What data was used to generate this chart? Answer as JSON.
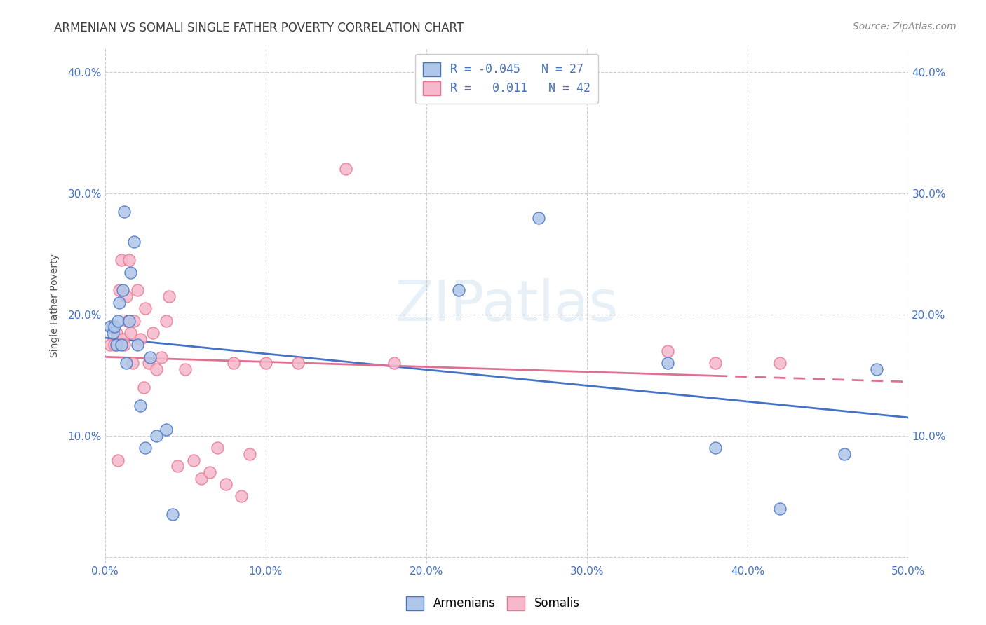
{
  "title": "ARMENIAN VS SOMALI SINGLE FATHER POVERTY CORRELATION CHART",
  "source": "Source: ZipAtlas.com",
  "ylabel": "Single Father Poverty",
  "xlim": [
    0.0,
    0.5
  ],
  "ylim": [
    -0.005,
    0.42
  ],
  "x_ticks": [
    0.0,
    0.1,
    0.2,
    0.3,
    0.4,
    0.5
  ],
  "x_tick_labels": [
    "0.0%",
    "10.0%",
    "20.0%",
    "30.0%",
    "40.0%",
    "50.0%"
  ],
  "y_ticks": [
    0.0,
    0.1,
    0.2,
    0.3,
    0.4
  ],
  "y_tick_labels": [
    "",
    "10.0%",
    "20.0%",
    "30.0%",
    "40.0%"
  ],
  "armenian_color": "#aec6e8",
  "somali_color": "#f5b8cc",
  "armenian_edge_color": "#4472c4",
  "somali_edge_color": "#e8758a",
  "armenian_line_color": "#4472c4",
  "somali_line_color": "#e07090",
  "background_color": "#ffffff",
  "grid_color": "#c8c8c8",
  "title_color": "#404040",
  "axis_tick_color": "#4472c4",
  "watermark_text": "ZIPatlas",
  "legend_r1": "R = -0.045",
  "legend_n1": "N = 27",
  "legend_r2": "R =   0.011",
  "legend_n2": "N = 42",
  "armenian_x": [
    0.003,
    0.005,
    0.006,
    0.007,
    0.008,
    0.009,
    0.01,
    0.011,
    0.012,
    0.013,
    0.015,
    0.016,
    0.018,
    0.02,
    0.022,
    0.025,
    0.028,
    0.032,
    0.038,
    0.042,
    0.22,
    0.27,
    0.35,
    0.38,
    0.42,
    0.46,
    0.48
  ],
  "armenian_y": [
    0.19,
    0.185,
    0.19,
    0.175,
    0.195,
    0.21,
    0.175,
    0.22,
    0.285,
    0.16,
    0.195,
    0.235,
    0.26,
    0.175,
    0.125,
    0.09,
    0.165,
    0.1,
    0.105,
    0.035,
    0.22,
    0.28,
    0.16,
    0.09,
    0.04,
    0.085,
    0.155
  ],
  "somali_x": [
    0.003,
    0.005,
    0.006,
    0.007,
    0.008,
    0.009,
    0.01,
    0.011,
    0.012,
    0.013,
    0.014,
    0.015,
    0.016,
    0.017,
    0.018,
    0.02,
    0.022,
    0.024,
    0.025,
    0.027,
    0.03,
    0.032,
    0.035,
    0.038,
    0.04,
    0.045,
    0.05,
    0.055,
    0.06,
    0.065,
    0.07,
    0.075,
    0.08,
    0.085,
    0.09,
    0.1,
    0.12,
    0.15,
    0.18,
    0.35,
    0.38,
    0.42
  ],
  "somali_y": [
    0.175,
    0.19,
    0.175,
    0.185,
    0.08,
    0.22,
    0.245,
    0.18,
    0.175,
    0.215,
    0.195,
    0.245,
    0.185,
    0.16,
    0.195,
    0.22,
    0.18,
    0.14,
    0.205,
    0.16,
    0.185,
    0.155,
    0.165,
    0.195,
    0.215,
    0.075,
    0.155,
    0.08,
    0.065,
    0.07,
    0.09,
    0.06,
    0.16,
    0.05,
    0.085,
    0.16,
    0.16,
    0.32,
    0.16,
    0.17,
    0.16,
    0.16
  ]
}
